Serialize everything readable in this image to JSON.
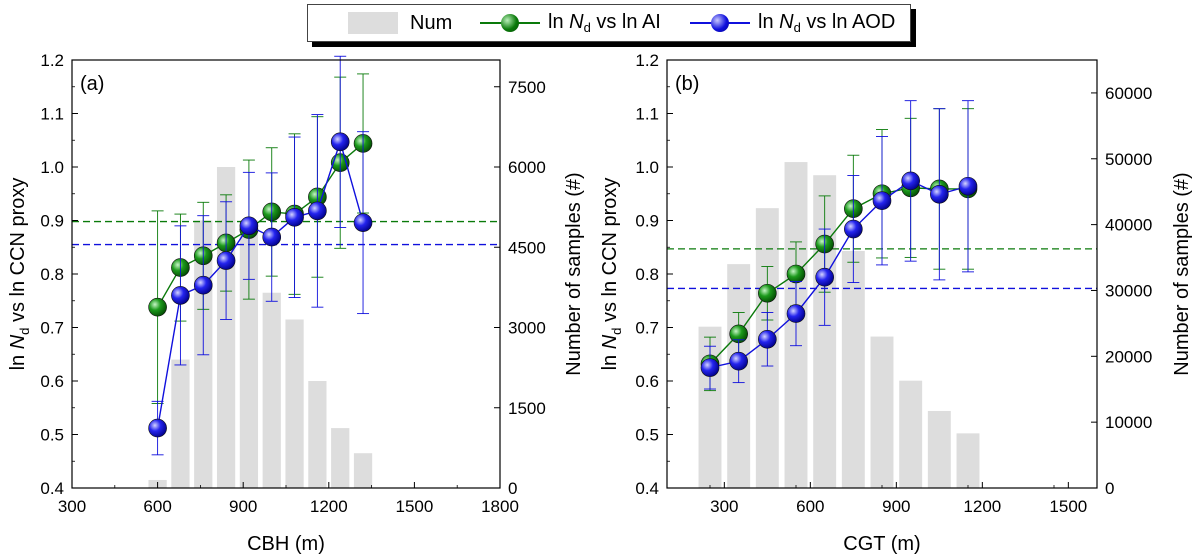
{
  "legend": {
    "num": "Num",
    "ai_pre": "ln ",
    "ai_N": "N",
    "ai_sub": "d",
    "ai_post": " vs ln AI",
    "aod_pre": "ln ",
    "aod_N": "N",
    "aod_sub": "d",
    "aod_post": " vs ln AOD"
  },
  "colors": {
    "ai": "#0a7a0a",
    "aod": "#1010dd",
    "bars": "#dddddd"
  },
  "chart_data": [
    {
      "panel_label": "(a)",
      "type": "bar+line",
      "xlabel": "CBH (m)",
      "ylabel_left": "ln Nd vs ln CCN proxy",
      "ylabel_right": "Number of samples (#)",
      "xlim": [
        300,
        1800
      ],
      "xticks": [
        300,
        600,
        900,
        1200,
        1500,
        1800
      ],
      "ylim_left": [
        0.4,
        1.2
      ],
      "yticks_left": [
        "0.4",
        "0.5",
        "0.6",
        "0.7",
        "0.8",
        "0.9",
        "1.0",
        "1.1",
        "1.2"
      ],
      "ylim_right": [
        0,
        8000
      ],
      "yticks_right": [
        0,
        1500,
        3000,
        4500,
        6000,
        7500
      ],
      "bars": {
        "name": "Num",
        "x": [
          600,
          680,
          760,
          840,
          920,
          1000,
          1080,
          1160,
          1240,
          1320
        ],
        "values": [
          150,
          2400,
          5000,
          6000,
          5000,
          3650,
          3150,
          2000,
          1120,
          650
        ]
      },
      "series": [
        {
          "name": "ln Nd vs ln AI",
          "color": "#0a7a0a",
          "x": [
            600,
            680,
            760,
            840,
            920,
            1000,
            1080,
            1160,
            1240,
            1320
          ],
          "y": [
            0.738,
            0.812,
            0.834,
            0.858,
            0.883,
            0.916,
            0.912,
            0.944,
            1.008,
            1.044
          ],
          "err": [
            0.18,
            0.1,
            0.1,
            0.09,
            0.13,
            0.12,
            0.15,
            0.15,
            0.16,
            0.13
          ]
        },
        {
          "name": "ln Nd vs ln AOD",
          "color": "#1010dd",
          "x": [
            600,
            680,
            760,
            840,
            920,
            1000,
            1080,
            1160,
            1240,
            1320
          ],
          "y": [
            0.512,
            0.76,
            0.779,
            0.825,
            0.89,
            0.869,
            0.906,
            0.918,
            1.047,
            0.896
          ],
          "err": [
            0.05,
            0.13,
            0.13,
            0.11,
            0.1,
            0.12,
            0.15,
            0.18,
            0.16,
            0.17
          ]
        }
      ],
      "hlines": [
        {
          "y": 0.898,
          "color": "#0a7a0a"
        },
        {
          "y": 0.855,
          "color": "#1010dd"
        }
      ]
    },
    {
      "panel_label": "(b)",
      "type": "bar+line",
      "xlabel": "CGT (m)",
      "ylabel_left": "ln Nd vs ln CCN proxy",
      "ylabel_right": "Number of samples (#)",
      "xlim": [
        100,
        1600
      ],
      "xticks": [
        300,
        600,
        900,
        1200,
        1500
      ],
      "ylim_left": [
        0.4,
        1.2
      ],
      "yticks_left": [
        "0.4",
        "0.5",
        "0.6",
        "0.7",
        "0.8",
        "0.9",
        "1.0",
        "1.1",
        "1.2"
      ],
      "ylim_right": [
        0,
        65000
      ],
      "yticks_right": [
        0,
        10000,
        20000,
        30000,
        40000,
        50000,
        60000
      ],
      "bars": {
        "name": "Num",
        "x": [
          250,
          350,
          450,
          550,
          650,
          750,
          850,
          950,
          1050,
          1150
        ],
        "values": [
          24500,
          34000,
          42500,
          49500,
          47500,
          36000,
          23000,
          16300,
          11700,
          8300
        ]
      },
      "series": [
        {
          "name": "ln Nd vs ln AI",
          "color": "#0a7a0a",
          "x": [
            250,
            350,
            450,
            550,
            650,
            750,
            850,
            950,
            1050,
            1150
          ],
          "y": [
            0.632,
            0.688,
            0.764,
            0.8,
            0.856,
            0.922,
            0.95,
            0.961,
            0.959,
            0.959
          ],
          "err": [
            0.05,
            0.04,
            0.05,
            0.06,
            0.09,
            0.1,
            0.12,
            0.13,
            0.15,
            0.15
          ]
        },
        {
          "name": "ln Nd vs ln AOD",
          "color": "#1010dd",
          "x": [
            250,
            350,
            450,
            550,
            650,
            750,
            850,
            950,
            1050,
            1150
          ],
          "y": [
            0.625,
            0.637,
            0.678,
            0.726,
            0.794,
            0.884,
            0.937,
            0.974,
            0.949,
            0.964
          ],
          "err": [
            0.04,
            0.04,
            0.05,
            0.06,
            0.09,
            0.1,
            0.12,
            0.15,
            0.16,
            0.16
          ]
        }
      ],
      "hlines": [
        {
          "y": 0.847,
          "color": "#0a7a0a"
        },
        {
          "y": 0.773,
          "color": "#1010dd"
        }
      ]
    }
  ]
}
